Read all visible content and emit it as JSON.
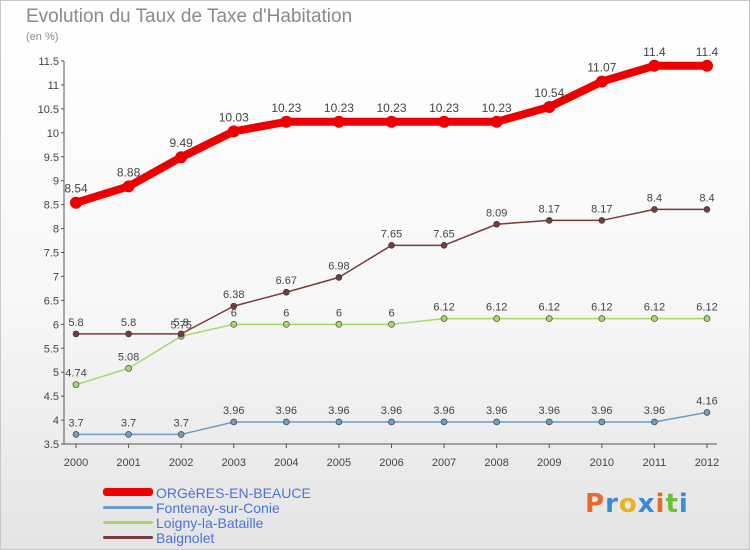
{
  "title": "Evolution du Taux de Taxe d'Habitation",
  "subtitle": "(en %)",
  "logo": {
    "text": "Proxiti",
    "letter_colors": [
      "#e86a2a",
      "#3a8ad6",
      "#e6b420",
      "#3a8ad6",
      "#e86a2a",
      "#6cbf3c",
      "#3a8ad6"
    ]
  },
  "chart_data": {
    "type": "line",
    "title": "Evolution du Taux de Taxe d'Habitation",
    "subtitle": "(en %)",
    "x": [
      "2000",
      "2001",
      "2002",
      "2003",
      "2004",
      "2005",
      "2006",
      "2007",
      "2008",
      "2009",
      "2010",
      "2011",
      "2012"
    ],
    "ylim": [
      3.5,
      11.5
    ],
    "yticks": [
      "3.5",
      "4",
      "4.5",
      "5",
      "5.5",
      "6",
      "6.5",
      "7",
      "7.5",
      "8",
      "8.5",
      "9",
      "9.5",
      "10",
      "10.5",
      "11",
      "11.5"
    ],
    "grid": false,
    "legend": "bottom-left",
    "series": [
      {
        "name": "ORGèRES-EN-BEAUCE",
        "color": "#ee0000",
        "labels": [
          "8.54",
          "8.88",
          "9.49",
          "10.03",
          "10.23",
          "10.23",
          "10.23",
          "10.23",
          "10.23",
          "10.54",
          "11.07",
          "11.4",
          "11.4"
        ],
        "values": [
          8.54,
          8.88,
          9.49,
          10.03,
          10.23,
          10.23,
          10.23,
          10.23,
          10.23,
          10.54,
          11.07,
          11.4,
          11.4
        ]
      },
      {
        "name": "Fontenay-sur-Conie",
        "color": "#6a9ec8",
        "labels": [
          "3.7",
          "3.7",
          "3.7",
          "3.96",
          "3.96",
          "3.96",
          "3.96",
          "3.96",
          "3.96",
          "3.96",
          "3.96",
          "3.96",
          "4.16"
        ],
        "values": [
          3.7,
          3.7,
          3.7,
          3.96,
          3.96,
          3.96,
          3.96,
          3.96,
          3.96,
          3.96,
          3.96,
          3.96,
          4.16
        ]
      },
      {
        "name": "Loigny-la-Bataille",
        "color": "#a6d86a",
        "labels": [
          "4.74",
          "5.08",
          "5.75",
          "6",
          "6",
          "6",
          "6",
          "6.12",
          "6.12",
          "6.12",
          "6.12",
          "6.12",
          "6.12"
        ],
        "values": [
          4.74,
          5.08,
          5.75,
          6,
          6,
          6,
          6,
          6.12,
          6.12,
          6.12,
          6.12,
          6.12,
          6.12
        ]
      },
      {
        "name": "Baignolet",
        "color": "#7a3a3a",
        "labels": [
          "5.8",
          "5.8",
          "5.8",
          "6.38",
          "6.67",
          "6.98",
          "7.65",
          "7.65",
          "8.09",
          "8.17",
          "8.17",
          "8.4",
          "8.4"
        ],
        "values": [
          5.8,
          5.8,
          5.8,
          6.38,
          6.67,
          6.98,
          7.65,
          7.65,
          8.09,
          8.17,
          8.17,
          8.4,
          8.4
        ]
      }
    ]
  }
}
